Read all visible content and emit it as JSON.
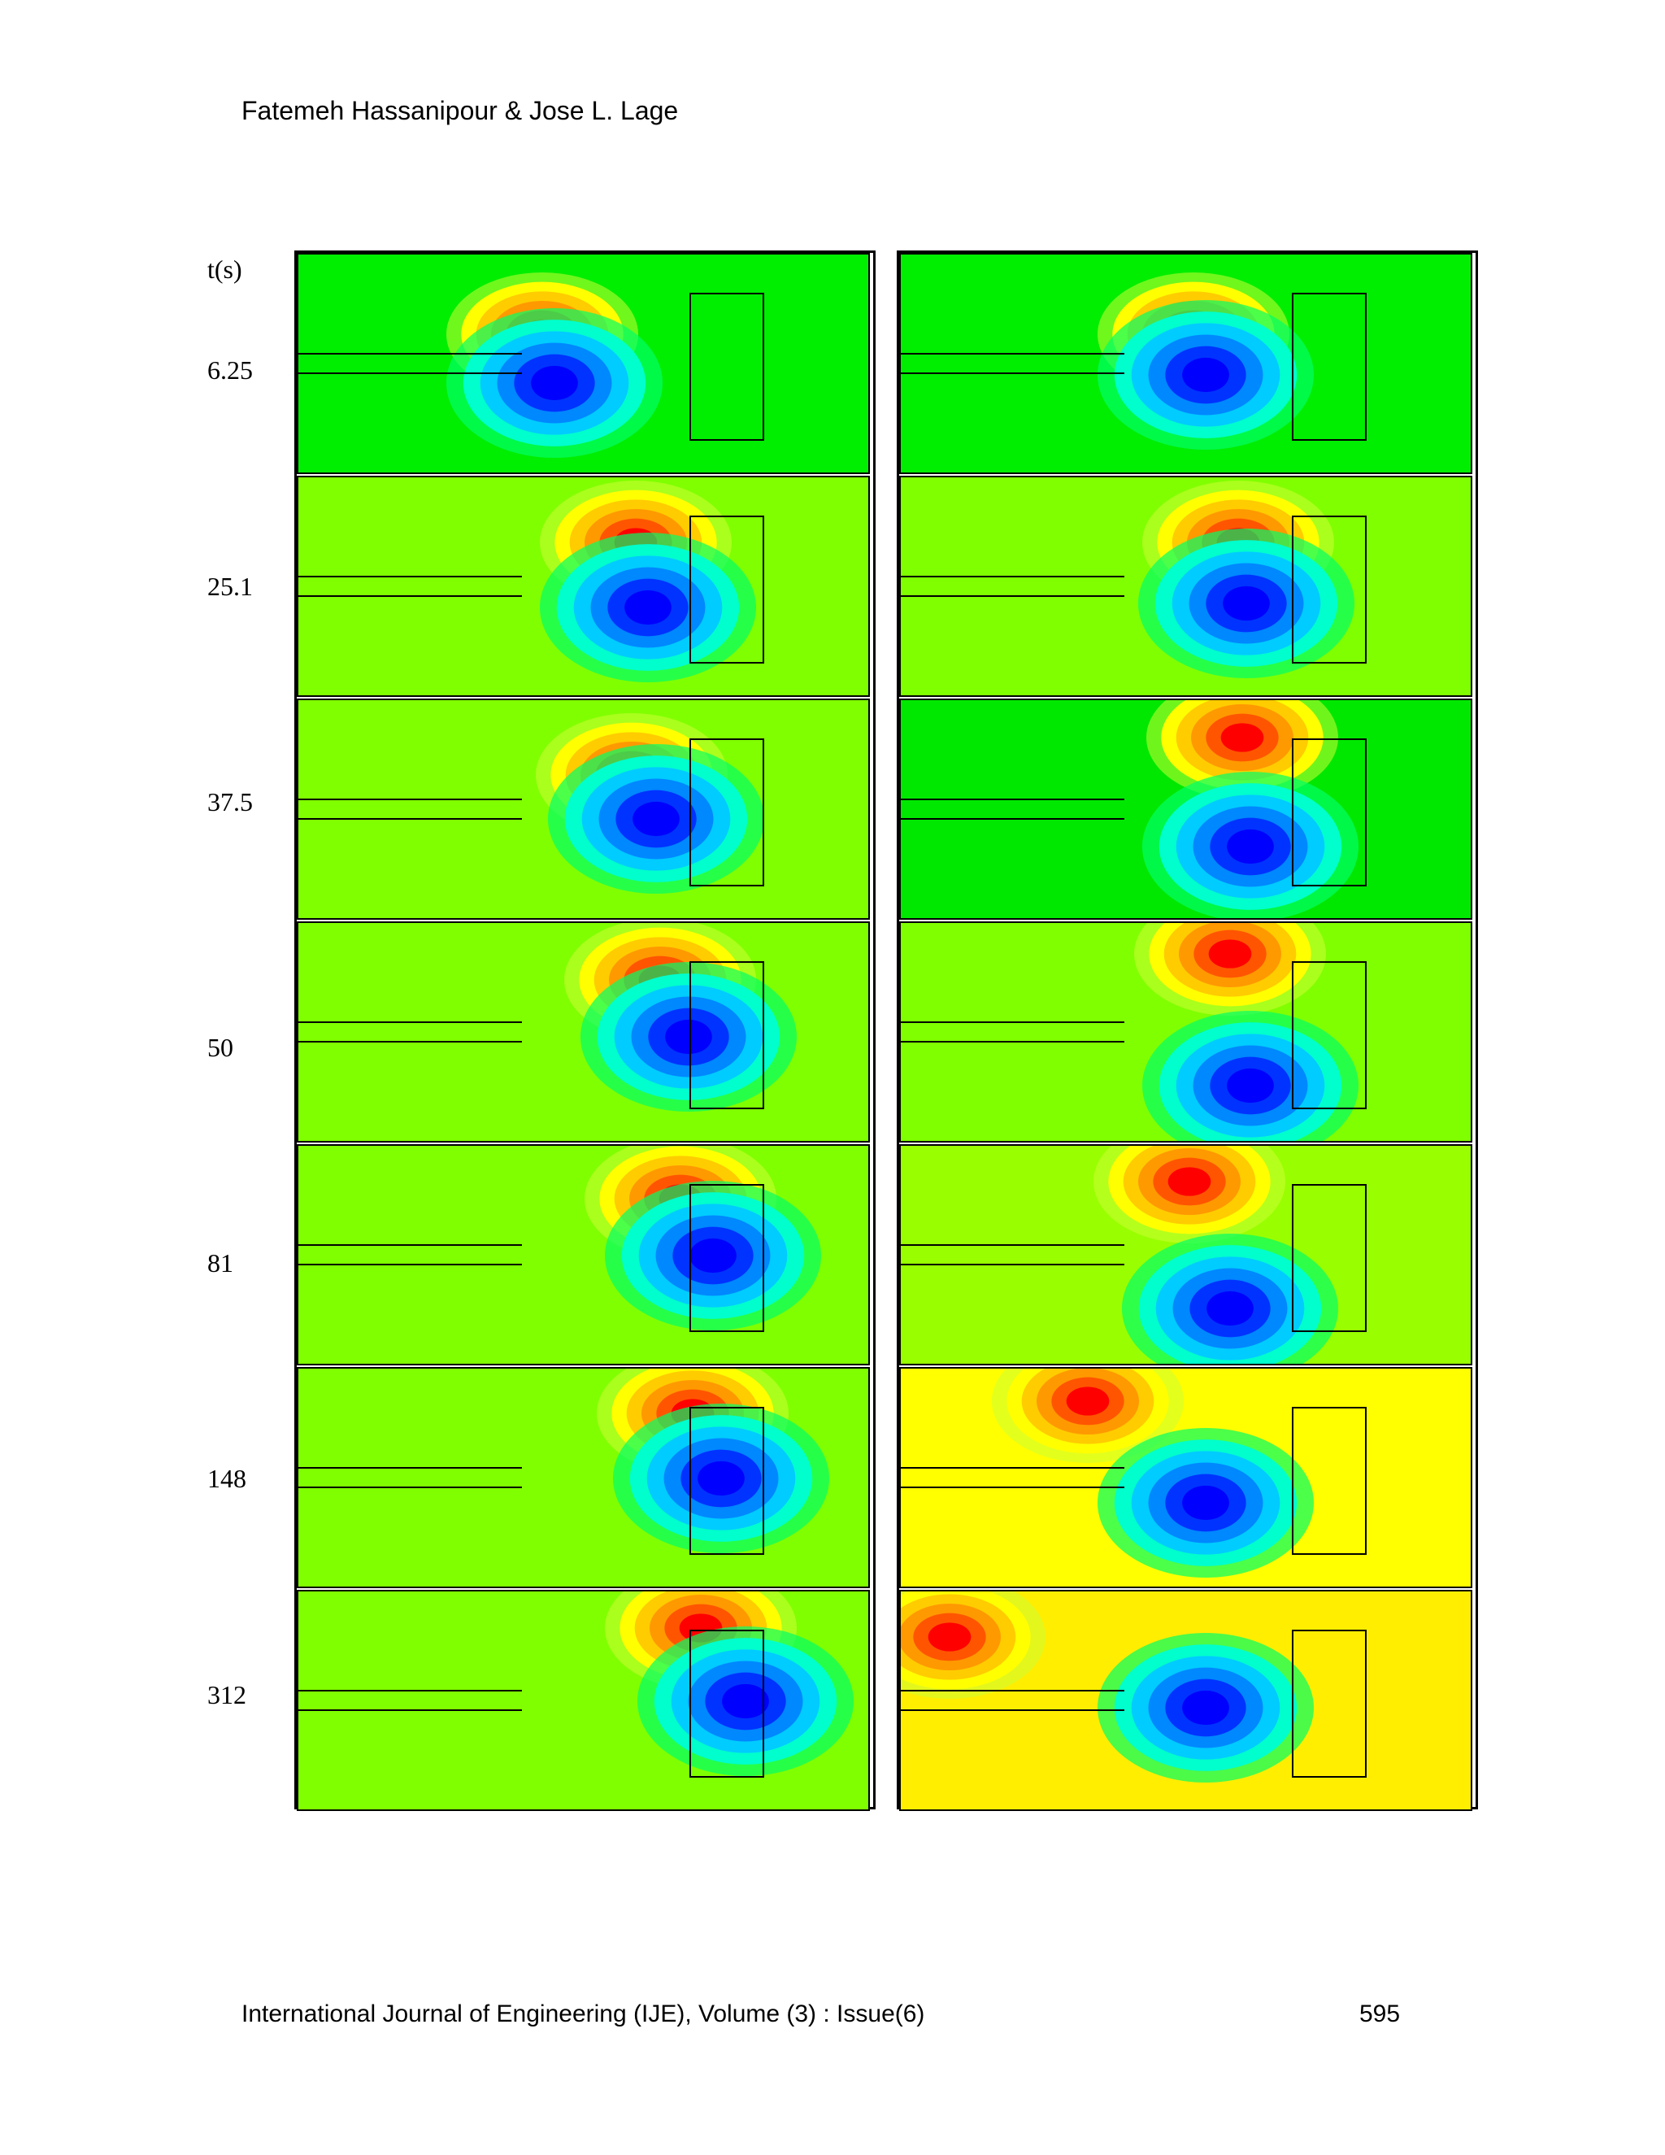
{
  "header": {
    "authors": "Fatemeh Hassanipour & Jose L. Lage"
  },
  "figure": {
    "time_axis_label": "t(s)",
    "times": [
      "6.25",
      "25.1",
      "37.5",
      "50",
      "81",
      "148",
      "312"
    ],
    "colors": {
      "background_green": "#00ee00",
      "lime": "#80ff00",
      "yellow": "#ffff00",
      "orange": "#ff9900",
      "red": "#ff0000",
      "cyan": "#00ffff",
      "blue": "#0000ff"
    },
    "left_column": [
      {
        "bg": "#00ee00"
      },
      {
        "bg": "#80ff00"
      },
      {
        "bg": "#80ff00"
      },
      {
        "bg": "#80ff00"
      },
      {
        "bg": "#80ff00"
      },
      {
        "bg": "#80ff00"
      },
      {
        "bg": "#80ff00"
      }
    ],
    "right_column": [
      {
        "bg": "#00ee00"
      },
      {
        "bg": "#80ff00"
      },
      {
        "bg": "#00e800"
      },
      {
        "bg": "#80ff00"
      },
      {
        "bg": "#99ff00"
      },
      {
        "bg": "#ffff00"
      },
      {
        "bg": "#ffee00"
      }
    ]
  },
  "footer": {
    "journal": "International Journal of Engineering (IJE), Volume (3) : Issue(6)",
    "page_number": "595"
  }
}
